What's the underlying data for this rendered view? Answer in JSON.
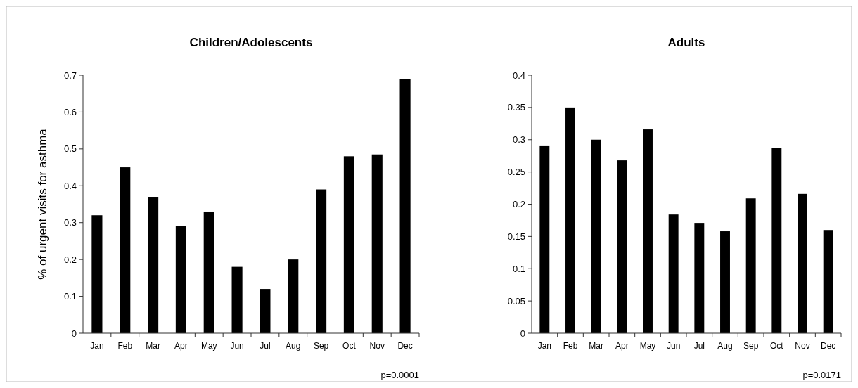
{
  "chart_data": [
    {
      "type": "bar",
      "title": "Children/Adolescents",
      "ylabel": "% of urgent visits for asthma",
      "categories": [
        "Jan",
        "Feb",
        "Mar",
        "Apr",
        "May",
        "Jun",
        "Jul",
        "Aug",
        "Sep",
        "Oct",
        "Nov",
        "Dec"
      ],
      "values": [
        0.32,
        0.45,
        0.37,
        0.29,
        0.33,
        0.18,
        0.12,
        0.2,
        0.39,
        0.48,
        0.485,
        0.69
      ],
      "color": "#000000",
      "ylim": [
        0,
        0.7
      ],
      "yticks": [
        0,
        0.1,
        0.2,
        0.3,
        0.4,
        0.5,
        0.6,
        0.7
      ],
      "annotations": [
        "p=0.0001"
      ]
    },
    {
      "type": "bar",
      "title": "Adults",
      "categories": [
        "Jan",
        "Feb",
        "Mar",
        "Apr",
        "May",
        "Jun",
        "Jul",
        "Aug",
        "Sep",
        "Oct",
        "Nov",
        "Dec"
      ],
      "values": [
        0.29,
        0.35,
        0.3,
        0.268,
        0.316,
        0.184,
        0.171,
        0.158,
        0.209,
        0.287,
        0.216,
        0.16
      ],
      "color": "#000000",
      "ylim": [
        0,
        0.4
      ],
      "yticks": [
        0,
        0.05,
        0.1,
        0.15,
        0.2,
        0.25,
        0.3,
        0.35,
        0.4
      ],
      "annotations": [
        "p=0.0171"
      ]
    }
  ]
}
